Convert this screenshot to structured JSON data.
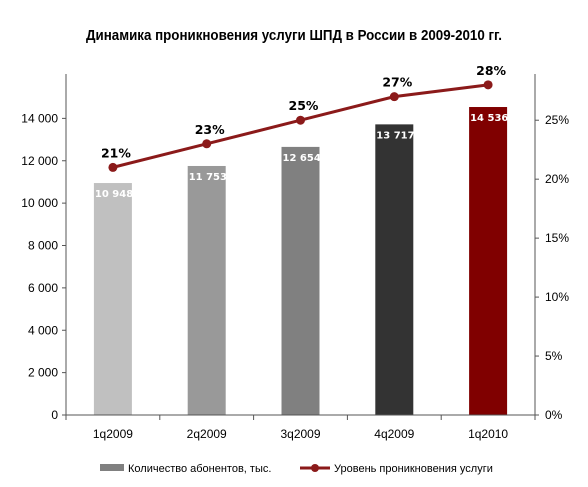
{
  "chart_data": {
    "type": "bar",
    "title": "Динамика проникновения услуги ШПД в России в 2009-2010 гг.",
    "categories": [
      "1q2009",
      "2q2009",
      "3q2009",
      "4q2009",
      "1q2010"
    ],
    "series": [
      {
        "name": "Количество абонентов, тыс.",
        "type": "bar",
        "axis": "left",
        "values": [
          10948,
          11753,
          12654,
          13717,
          14536
        ],
        "value_labels": [
          "10 948",
          "11 753",
          "12 654",
          "13 717",
          "14 536"
        ],
        "colors": [
          "#c0c0c0",
          "#999999",
          "#808080",
          "#333333",
          "#800000"
        ]
      },
      {
        "name": "Уровень проникновения услуги",
        "type": "line",
        "axis": "right",
        "values": [
          21,
          23,
          25,
          27,
          28
        ],
        "value_labels": [
          "21%",
          "23%",
          "25%",
          "27%",
          "28%"
        ],
        "color": "#8b1a1a"
      }
    ],
    "y_left": {
      "min": 0,
      "max": 16000,
      "ticks": [
        0,
        2000,
        4000,
        6000,
        8000,
        10000,
        12000,
        14000
      ],
      "tick_labels": [
        "0",
        "2 000",
        "4 000",
        "6 000",
        "8 000",
        "10 000",
        "12 000",
        "14 000"
      ]
    },
    "y_right": {
      "min": 0,
      "max": 28.75,
      "ticks": [
        0,
        5,
        10,
        15,
        20,
        25
      ],
      "tick_labels": [
        "0%",
        "5%",
        "10%",
        "15%",
        "20%",
        "25%"
      ]
    },
    "grid": false,
    "legend_position": "bottom",
    "legend_bar_color": "#808080",
    "legend_line_color": "#8b1a1a"
  }
}
